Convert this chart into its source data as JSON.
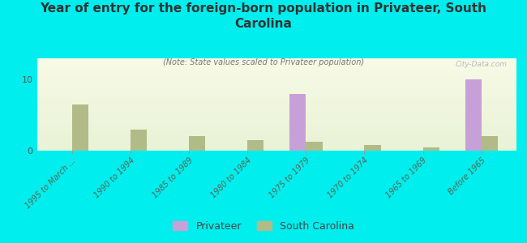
{
  "title": "Year of entry for the foreign-born population in Privateer, South\nCarolina",
  "subtitle": "(Note: State values scaled to Privateer population)",
  "background_color": "#00EEEE",
  "categories": [
    "1995 to March ...",
    "1990 to 1994",
    "1985 to 1989",
    "1980 to 1984",
    "1975 to 1979",
    "1970 to 1974",
    "1965 to 1969",
    "Before 1965"
  ],
  "privateer_values": [
    0,
    0,
    0,
    0,
    8,
    0,
    0,
    10
  ],
  "sc_values": [
    6.5,
    3.0,
    2.0,
    1.5,
    1.2,
    0.8,
    0.5,
    2.0
  ],
  "privateer_color": "#c8a0d8",
  "sc_color": "#b0bb88",
  "ylim": [
    0,
    13
  ],
  "yticks": [
    0,
    10
  ],
  "bar_width": 0.28,
  "watermark": "City-Data.com",
  "legend_privateer": "Privateer",
  "legend_sc": "South Carolina"
}
